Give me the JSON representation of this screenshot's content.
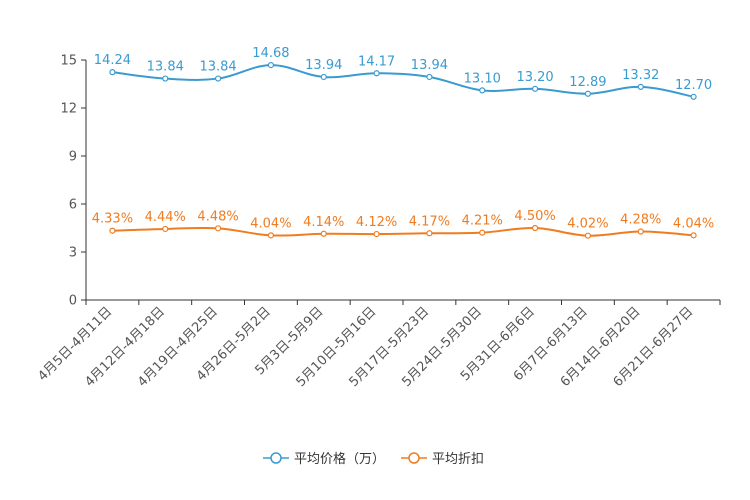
{
  "chart_data": {
    "type": "line",
    "title": "",
    "xlabel": "",
    "ylabel": "",
    "ylim": [
      0,
      15
    ],
    "yticks": [
      0,
      3,
      6,
      9,
      12,
      15
    ],
    "grid": false,
    "legend_position": "bottom-center",
    "categories": [
      "4月5日-4月11日",
      "4月12日-4月18日",
      "4月19日-4月25日",
      "4月26日-5月2日",
      "5月3日-5月9日",
      "5月10日-5月16日",
      "5月17日-5月23日",
      "5月24日-5月30日",
      "5月31日-6月6日",
      "6月7日-6月13日",
      "6月14日-6月20日",
      "6月21日-6月27日"
    ],
    "series": [
      {
        "name": "平均价格（万）",
        "color": "#3a9bd0",
        "values": [
          14.24,
          13.84,
          13.84,
          14.68,
          13.94,
          14.17,
          13.94,
          13.1,
          13.2,
          12.89,
          13.32,
          12.7
        ],
        "labels": [
          "14.24",
          "13.84",
          "13.84",
          "14.68",
          "13.94",
          "14.17",
          "13.94",
          "13.10",
          "13.20",
          "12.89",
          "13.32",
          "12.70"
        ]
      },
      {
        "name": "平均折扣",
        "color": "#f07c20",
        "values": [
          4.33,
          4.44,
          4.48,
          4.04,
          4.14,
          4.12,
          4.17,
          4.21,
          4.5,
          4.02,
          4.28,
          4.04
        ],
        "labels": [
          "4.33%",
          "4.44%",
          "4.48%",
          "4.04%",
          "4.14%",
          "4.12%",
          "4.17%",
          "4.21%",
          "4.50%",
          "4.02%",
          "4.28%",
          "4.04%"
        ]
      }
    ]
  }
}
